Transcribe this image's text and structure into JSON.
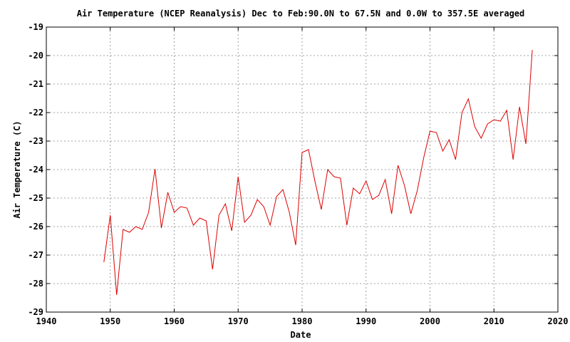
{
  "chart_data": {
    "type": "line",
    "title": "Air Temperature (NCEP Reanalysis) Dec to Feb:90.0N to 67.5N and 0.0W to 357.5E averaged",
    "xlabel": "Date",
    "ylabel": "Air Temperature (C)",
    "xlim": [
      1940,
      2020
    ],
    "ylim": [
      -29,
      -19
    ],
    "x_ticks": [
      "1940",
      "1950",
      "1960",
      "1970",
      "1980",
      "1990",
      "2000",
      "2010",
      "2020"
    ],
    "y_ticks": [
      "-19",
      "-20",
      "-21",
      "-22",
      "-23",
      "-24",
      "-25",
      "-26",
      "-27",
      "-28",
      "-29"
    ],
    "grid": true,
    "legend": "none",
    "series": [
      {
        "color": "#dd0000",
        "x": [
          1949,
          1950,
          1951,
          1952,
          1953,
          1954,
          1955,
          1956,
          1957,
          1958,
          1959,
          1960,
          1961,
          1962,
          1963,
          1964,
          1965,
          1966,
          1967,
          1968,
          1969,
          1970,
          1971,
          1972,
          1973,
          1974,
          1975,
          1976,
          1977,
          1978,
          1979,
          1980,
          1981,
          1982,
          1983,
          1984,
          1985,
          1986,
          1987,
          1988,
          1989,
          1990,
          1991,
          1992,
          1993,
          1994,
          1995,
          1996,
          1997,
          1998,
          1999,
          2000,
          2001,
          2002,
          2003,
          2004,
          2005,
          2006,
          2007,
          2008,
          2009,
          2010,
          2011,
          2012,
          2013,
          2014,
          2015,
          2016
        ],
        "y": [
          -27.25,
          -25.6,
          -28.4,
          -26.1,
          -26.2,
          -26.0,
          -26.1,
          -25.5,
          -23.98,
          -26.05,
          -24.8,
          -25.5,
          -25.3,
          -25.35,
          -25.95,
          -25.7,
          -25.8,
          -27.5,
          -25.6,
          -25.2,
          -26.15,
          -24.25,
          -25.85,
          -25.6,
          -25.05,
          -25.3,
          -25.95,
          -24.95,
          -24.7,
          -25.5,
          -26.65,
          -23.4,
          -23.3,
          -24.4,
          -25.4,
          -24.0,
          -24.25,
          -24.3,
          -25.95,
          -24.65,
          -24.85,
          -24.4,
          -25.05,
          -24.9,
          -24.35,
          -25.55,
          -23.85,
          -24.55,
          -25.55,
          -24.75,
          -23.6,
          -22.65,
          -22.7,
          -23.35,
          -22.95,
          -23.65,
          -22.0,
          -21.52,
          -22.5,
          -22.9,
          -22.4,
          -22.25,
          -22.3,
          -21.92,
          -23.65,
          -21.8,
          -23.1,
          -19.8
        ]
      }
    ]
  }
}
